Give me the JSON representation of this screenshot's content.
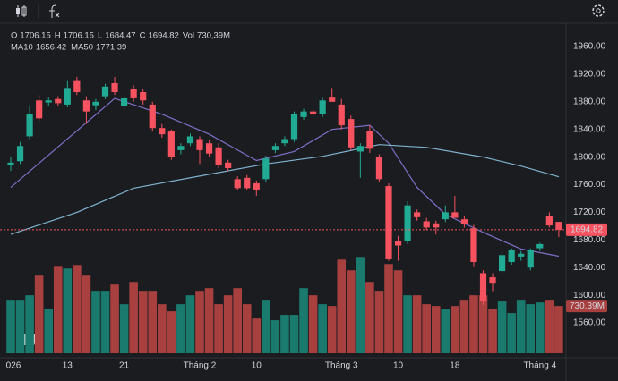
{
  "chart_data": {
    "type": "candlestick",
    "categories": [
      "026",
      null,
      null,
      null,
      null,
      null,
      "13",
      null,
      null,
      null,
      null,
      null,
      "21",
      null,
      null,
      null,
      null,
      null,
      null,
      null,
      "Tháng 2",
      null,
      null,
      null,
      null,
      null,
      "10",
      null,
      null,
      null,
      null,
      null,
      null,
      null,
      null,
      "Tháng 3",
      null,
      null,
      null,
      null,
      null,
      "10",
      null,
      null,
      null,
      null,
      null,
      "18",
      null,
      null,
      null,
      null,
      null,
      null,
      null,
      null,
      "Tháng 4",
      null,
      null
    ],
    "open": [
      1788,
      1794,
      1830,
      1882,
      1879,
      1884,
      1876,
      1910,
      1882,
      1875,
      1888,
      1907,
      1874,
      1898,
      1894,
      1876,
      1842,
      1837,
      1810,
      1820,
      1826,
      1820,
      1814,
      1792,
      1768,
      1770,
      1762,
      1768,
      1810,
      1820,
      1826,
      1858,
      1866,
      1862,
      1886,
      1876,
      1855,
      1808,
      1838,
      1800,
      1758,
      1678,
      1678,
      1720,
      1707,
      1704,
      1710,
      1720,
      1710,
      1697,
      1632,
      1626,
      1635,
      1648,
      1656,
      1640,
      1668,
      1715,
      1706.15
    ],
    "high": [
      1800,
      1822,
      1875,
      1890,
      1886,
      1888,
      1910,
      1916,
      1888,
      1884,
      1906,
      1916,
      1890,
      1904,
      1898,
      1880,
      1848,
      1840,
      1820,
      1834,
      1830,
      1824,
      1820,
      1796,
      1772,
      1774,
      1766,
      1802,
      1820,
      1830,
      1866,
      1870,
      1870,
      1886,
      1900,
      1884,
      1860,
      1820,
      1846,
      1804,
      1762,
      1686,
      1736,
      1724,
      1712,
      1708,
      1730,
      1744,
      1714,
      1702,
      1636,
      1632,
      1662,
      1668,
      1664,
      1668,
      1676,
      1720,
      1706.15
    ],
    "low": [
      1780,
      1790,
      1825,
      1852,
      1874,
      1874,
      1872,
      1890,
      1848,
      1868,
      1884,
      1890,
      1870,
      1880,
      1876,
      1838,
      1828,
      1796,
      1804,
      1816,
      1790,
      1800,
      1784,
      1780,
      1752,
      1752,
      1744,
      1764,
      1806,
      1816,
      1822,
      1854,
      1860,
      1858,
      1880,
      1840,
      1810,
      1770,
      1806,
      1764,
      1650,
      1650,
      1674,
      1708,
      1694,
      1688,
      1706,
      1716,
      1698,
      1642,
      1586,
      1606,
      1630,
      1644,
      1650,
      1636,
      1664,
      1698,
      1684.47
    ],
    "close": [
      1792,
      1816,
      1862,
      1856,
      1882,
      1878,
      1900,
      1894,
      1866,
      1880,
      1902,
      1894,
      1885,
      1885,
      1882,
      1842,
      1833,
      1800,
      1816,
      1830,
      1810,
      1805,
      1788,
      1784,
      1755,
      1755,
      1753,
      1798,
      1816,
      1826,
      1862,
      1866,
      1862,
      1882,
      1880,
      1846,
      1814,
      1816,
      1812,
      1768,
      1652,
      1672,
      1730,
      1713,
      1698,
      1698,
      1720,
      1712,
      1703,
      1648,
      1591,
      1618,
      1658,
      1665,
      1660,
      1665,
      1674,
      1701,
      1694.82
    ],
    "volume": [
      827,
      827,
      896,
      1199,
      689,
      1350,
      1309,
      1364,
      1199,
      965,
      965,
      1061,
      758,
      1102,
      965,
      965,
      758,
      648,
      758,
      896,
      965,
      1006,
      758,
      896,
      1006,
      758,
      537,
      827,
      510,
      593,
      593,
      1006,
      896,
      758,
      730,
      1447,
      1282,
      1488,
      1102,
      965,
      1378,
      1282,
      896,
      896,
      758,
      730,
      689,
      730,
      827,
      896,
      896,
      689,
      800,
      620,
      827,
      758,
      785,
      827,
      730.39
    ],
    "volume_value_label": "730.39M",
    "volume_lim": [
      0,
      2100
    ],
    "up_color": "#22ab94",
    "down_color": "#f7525f",
    "up_volume_color": "#1b7a6e",
    "down_volume_color": "#a8403f",
    "ma": [
      {
        "name": "MA10",
        "color": "#7e6fc8",
        "x": [
          0,
          11,
          16,
          21,
          26,
          30,
          34,
          38,
          40,
          43,
          46,
          50,
          54,
          58
        ],
        "values": [
          1756,
          1885,
          1862,
          1833,
          1795,
          1808,
          1840,
          1846,
          1820,
          1756,
          1717,
          1691,
          1667,
          1656.42
        ]
      },
      {
        "name": "MA50",
        "color": "#7fb2cf",
        "x": [
          0,
          7,
          13,
          21,
          27,
          33,
          39,
          44,
          50,
          54,
          58
        ],
        "values": [
          1688,
          1720,
          1755,
          1775,
          1790,
          1801,
          1818,
          1814,
          1800,
          1787,
          1771.39
        ]
      }
    ],
    "legend_labels": [
      "O",
      "H",
      "L",
      "C"
    ],
    "vol_label": "Vol",
    "vol_text": "730,39M",
    "ylim": [
      1516,
      1988.5
    ],
    "yticks": [
      {
        "value": 1560,
        "label": "1560.00"
      },
      {
        "value": 1600,
        "label": "1600.00"
      },
      {
        "value": 1640,
        "label": "1640.00"
      },
      {
        "value": 1680,
        "label": "1680.00"
      },
      {
        "value": 1720,
        "label": "1720.00"
      },
      {
        "value": 1760,
        "label": "1760.00"
      },
      {
        "value": 1800,
        "label": "1800.00"
      },
      {
        "value": 1840,
        "label": "1840.00"
      },
      {
        "value": 1880,
        "label": "1880.00"
      },
      {
        "value": 1920,
        "label": "1920.00"
      },
      {
        "value": 1960,
        "label": "1960.00"
      }
    ],
    "grid": false
  }
}
